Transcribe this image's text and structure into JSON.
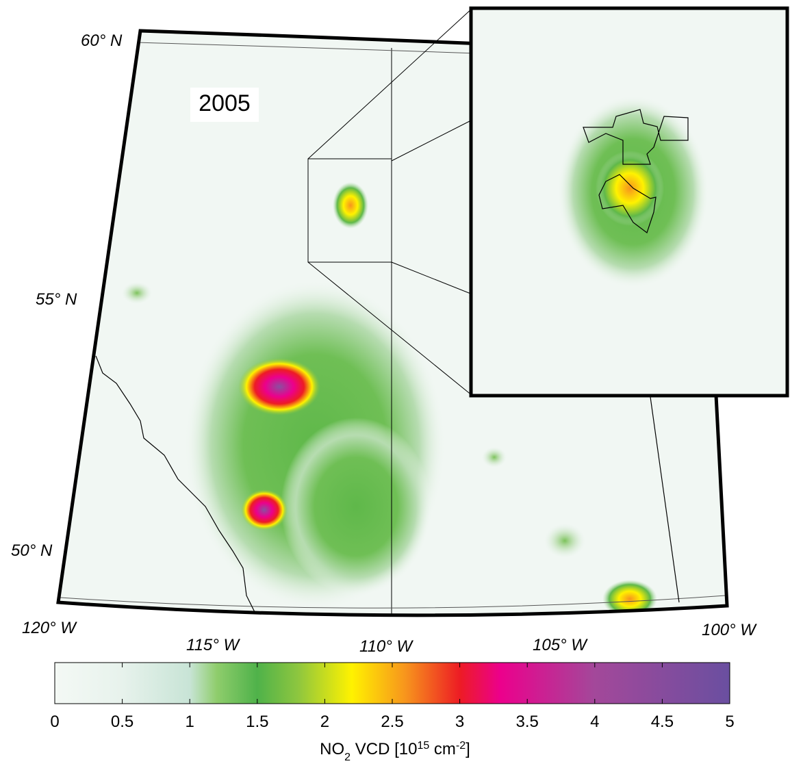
{
  "year": "2005",
  "latitude_labels": [
    "60° N",
    "55° N",
    "50° N"
  ],
  "longitude_labels": [
    "120° W",
    "115° W",
    "110° W",
    "105° W",
    "100° W"
  ],
  "colorbar": {
    "clim": [
      0,
      5
    ],
    "ticks": [
      0,
      0.5,
      1,
      1.5,
      2,
      2.5,
      3,
      3.5,
      4,
      4.5,
      5
    ],
    "label_parts": [
      "NO",
      "2",
      " VCD [10",
      "15",
      " cm",
      "-2",
      "]"
    ],
    "colormap": [
      {
        "value": 0,
        "color": "#f4f9f5"
      },
      {
        "value": 0.5,
        "color": "#e7f2ec"
      },
      {
        "value": 1,
        "color": "#c8e4d6"
      },
      {
        "value": 1.2,
        "color": "#8fcd6c"
      },
      {
        "value": 1.5,
        "color": "#4fb24a"
      },
      {
        "value": 1.8,
        "color": "#8dc63f"
      },
      {
        "value": 2.2,
        "color": "#fff200"
      },
      {
        "value": 2.6,
        "color": "#f7941d"
      },
      {
        "value": 3,
        "color": "#ed1c24"
      },
      {
        "value": 3.3,
        "color": "#ec008c"
      },
      {
        "value": 4,
        "color": "#a3489a"
      },
      {
        "value": 5,
        "color": "#6a4fa0"
      }
    ]
  }
}
